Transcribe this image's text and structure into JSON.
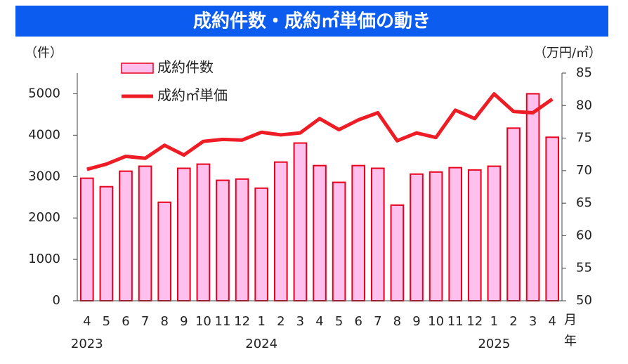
{
  "chart_data": {
    "type": "bar-line",
    "title": "成約件数・成約㎡単価の動き",
    "y_label": "（件）",
    "y2_label": "（万円/㎡）",
    "x_unit_month": "月",
    "x_unit_year": "年",
    "categories": [
      "4",
      "5",
      "6",
      "7",
      "8",
      "9",
      "10",
      "11",
      "12",
      "1",
      "2",
      "3",
      "4",
      "5",
      "6",
      "7",
      "8",
      "9",
      "10",
      "11",
      "12",
      "1",
      "2",
      "3",
      "4"
    ],
    "year_labels": [
      "2023",
      null,
      null,
      null,
      null,
      null,
      null,
      null,
      null,
      "2024",
      null,
      null,
      null,
      null,
      null,
      null,
      null,
      null,
      null,
      null,
      null,
      "2025",
      null,
      null,
      null
    ],
    "series": [
      {
        "name": "成約件数",
        "type": "bar",
        "color": "#ffc0ee",
        "edge_color": "#e8001c",
        "values": [
          2960,
          2755,
          3130,
          3250,
          2380,
          3200,
          3300,
          2910,
          2940,
          2720,
          3350,
          3810,
          3265,
          2860,
          3265,
          3200,
          2310,
          3060,
          3110,
          3215,
          3160,
          3250,
          4170,
          5000,
          3950
        ]
      },
      {
        "name": "成約㎡単価",
        "type": "line",
        "axis": "y2",
        "color": "#ee1c25",
        "values": [
          70.2,
          71.0,
          72.2,
          71.9,
          73.9,
          72.4,
          74.5,
          74.8,
          74.7,
          75.9,
          75.5,
          75.8,
          78.0,
          76.3,
          77.8,
          78.9,
          74.6,
          75.8,
          75.1,
          79.3,
          78.0,
          81.8,
          79.1,
          78.9,
          81.0
        ]
      }
    ],
    "ylim": [
      0,
      5500
    ],
    "yticks": [
      0,
      1000,
      2000,
      3000,
      4000,
      5000
    ],
    "y2lim": [
      50,
      85
    ],
    "y2ticks": [
      50,
      55,
      60,
      65,
      70,
      75,
      80,
      85
    ]
  }
}
